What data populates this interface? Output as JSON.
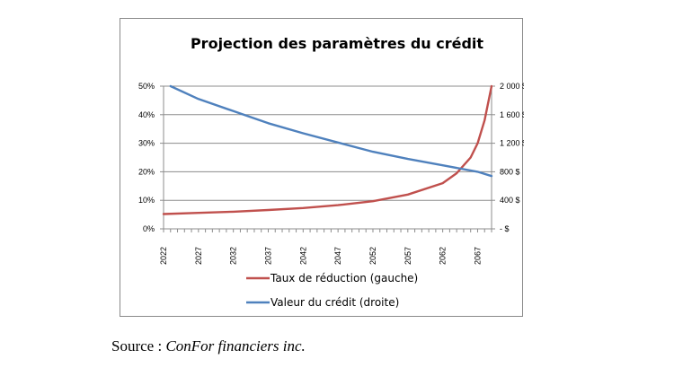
{
  "chart_data": {
    "type": "line",
    "title": "Projection des paramètres du crédit",
    "x": [
      2022,
      2027,
      2032,
      2037,
      2042,
      2047,
      2052,
      2057,
      2062,
      2064,
      2066,
      2067,
      2068,
      2069
    ],
    "x_tick_labels": [
      "2022",
      "2027",
      "2032",
      "2037",
      "2042",
      "2047",
      "2052",
      "2057",
      "2062",
      "2067"
    ],
    "y_left_ticks": [
      "0%",
      "10%",
      "20%",
      "30%",
      "40%",
      "50%"
    ],
    "y_right_ticks": [
      "-   $",
      "400 $",
      "800 $",
      "1 200 $",
      "1 600 $",
      "2 000 $"
    ],
    "ylim_left": [
      0,
      0.5
    ],
    "ylim_right": [
      0,
      2000
    ],
    "xlim": [
      2022,
      2069
    ],
    "grid": true,
    "legend_position": "bottom",
    "series": [
      {
        "name": "Taux de réduction (gauche)",
        "axis": "left",
        "color": "#c0504d",
        "values": [
          0.052,
          0.056,
          0.06,
          0.066,
          0.073,
          0.083,
          0.097,
          0.12,
          0.16,
          0.195,
          0.25,
          0.3,
          0.38,
          0.5
        ]
      },
      {
        "name": "Valeur du crédit (droite)",
        "axis": "right",
        "color": "#4f81bd",
        "x": [
          2023,
          2027,
          2032,
          2037,
          2042,
          2047,
          2052,
          2057,
          2062,
          2067,
          2069
        ],
        "values": [
          2000,
          1820,
          1650,
          1480,
          1340,
          1210,
          1080,
          980,
          890,
          800,
          740
        ]
      }
    ]
  },
  "source": {
    "prefix": "Source : ",
    "name": "ConFor financiers inc."
  }
}
